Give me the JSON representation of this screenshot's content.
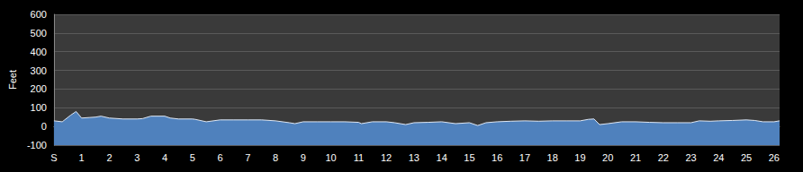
{
  "chart_data": {
    "type": "area",
    "ylabel": "Feet",
    "x": [
      0,
      0.3,
      0.6,
      0.8,
      1.0,
      1.3,
      1.5,
      1.7,
      2.0,
      2.5,
      3.0,
      3.2,
      3.5,
      4.0,
      4.2,
      4.5,
      5.0,
      5.1,
      5.5,
      6.0,
      6.5,
      7.0,
      7.5,
      8.0,
      8.5,
      8.7,
      9.0,
      9.5,
      10.0,
      10.5,
      11.0,
      11.1,
      11.5,
      12.0,
      12.3,
      12.7,
      13.0,
      13.5,
      14.0,
      14.5,
      15.0,
      15.3,
      15.6,
      16.0,
      16.5,
      17.0,
      17.5,
      18.0,
      18.5,
      19.0,
      19.3,
      19.5,
      19.7,
      20.0,
      20.5,
      21.0,
      21.5,
      22.0,
      22.5,
      23.0,
      23.3,
      23.7,
      24.0,
      24.5,
      25.0,
      25.3,
      25.6,
      26.0,
      26.2
    ],
    "values": [
      30,
      25,
      60,
      80,
      45,
      48,
      50,
      55,
      45,
      40,
      40,
      42,
      55,
      55,
      45,
      40,
      40,
      38,
      25,
      35,
      35,
      35,
      35,
      30,
      20,
      15,
      25,
      25,
      25,
      25,
      22,
      15,
      25,
      25,
      20,
      10,
      20,
      22,
      25,
      15,
      20,
      5,
      20,
      25,
      28,
      30,
      28,
      30,
      30,
      30,
      38,
      40,
      10,
      15,
      25,
      25,
      22,
      20,
      20,
      20,
      30,
      28,
      30,
      32,
      35,
      32,
      25,
      25,
      30
    ],
    "color": "#4f81bd",
    "xlim": [
      0,
      26.2
    ],
    "xticks": [
      {
        "value": 0,
        "label": "S"
      },
      1,
      2,
      3,
      4,
      5,
      6,
      7,
      8,
      9,
      10,
      11,
      12,
      13,
      14,
      15,
      16,
      17,
      18,
      19,
      20,
      21,
      22,
      23,
      24,
      25,
      26
    ],
    "ylim": [
      -100,
      600
    ],
    "yticks": [
      -100,
      0,
      100,
      200,
      300,
      400,
      500,
      600
    ],
    "grid": true
  }
}
